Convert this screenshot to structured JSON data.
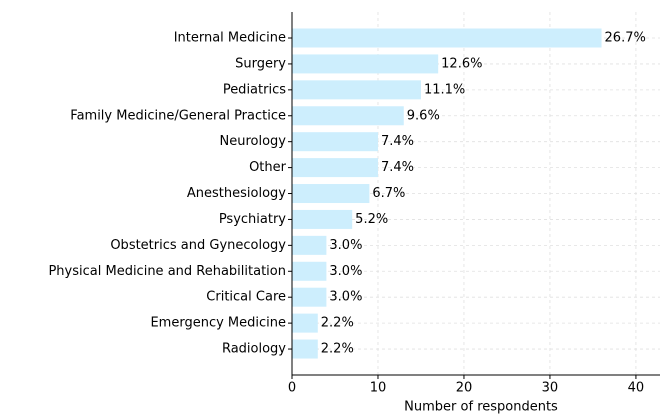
{
  "chart_data": {
    "type": "barh",
    "categories": [
      "Internal Medicine",
      "Surgery",
      "Pediatrics",
      "Family Medicine/General Practice",
      "Neurology",
      "Other",
      "Anesthesiology",
      "Psychiatry",
      "Obstetrics and Gynecology",
      "Physical Medicine and Rehabilitation",
      "Critical Care",
      "Emergency Medicine",
      "Radiology"
    ],
    "values": [
      36,
      17,
      15,
      13,
      10,
      10,
      9,
      7,
      4,
      4,
      4,
      3,
      3
    ],
    "value_labels": [
      "26.7%",
      "12.6%",
      "11.1%",
      "9.6%",
      "7.4%",
      "7.4%",
      "6.7%",
      "5.2%",
      "3.0%",
      "3.0%",
      "3.0%",
      "2.2%",
      "2.2%"
    ],
    "color": "#cdeefd",
    "xlabel": "Number of respondents",
    "xlim": [
      0,
      42.8
    ],
    "xticks": [
      0,
      10,
      20,
      30,
      40
    ],
    "grid": true
  }
}
